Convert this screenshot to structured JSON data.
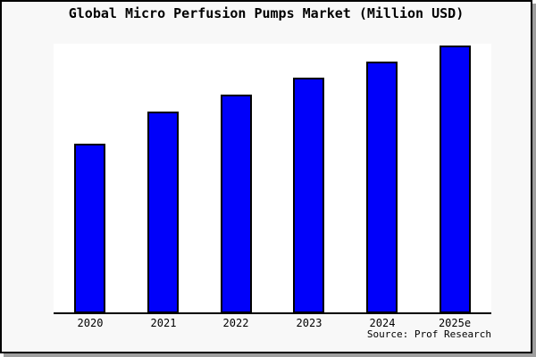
{
  "chart": {
    "title": "Global Micro Perfusion Pumps Market (Million USD)",
    "source_credit": "Source: Prof Research"
  },
  "chart_data": {
    "type": "bar",
    "title": "Global Micro Perfusion Pumps Market (Million USD)",
    "categories": [
      "2020",
      "2021",
      "2022",
      "2023",
      "2024",
      "2025e"
    ],
    "values": [
      63.3,
      75.3,
      81.7,
      88.0,
      94.0,
      100.0
    ],
    "values_note": "relative index, tallest bar (2025e) = 100; y-axis has no ticks or labels in the image",
    "xlabel": "",
    "ylabel": "",
    "ylim": [
      0,
      100
    ],
    "grid": false,
    "legend": false,
    "y_axis_visible": false,
    "source": "Source: Prof Research",
    "colors": {
      "bar_fill": "#0000fa",
      "bar_edge": "#000000",
      "figure_background": "#f8f8f8",
      "plot_background": "#ffffff",
      "frame_border": "#000000",
      "frame_shadow": "#9e9e9e",
      "text": "#000000"
    }
  }
}
